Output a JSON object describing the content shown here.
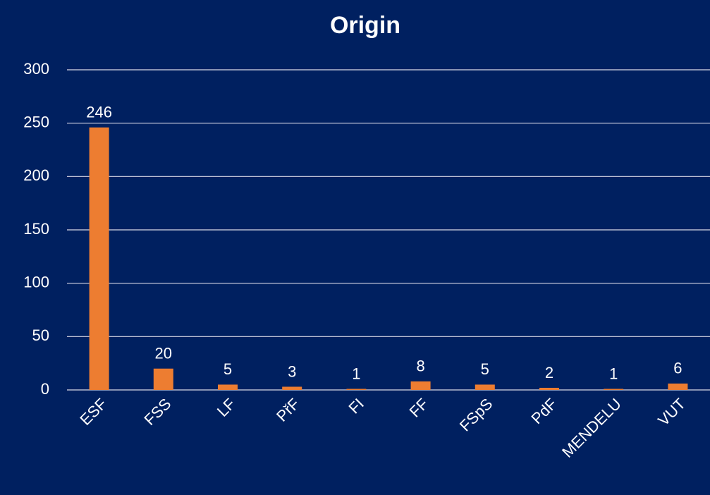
{
  "chart_data": {
    "type": "bar",
    "title": "Origin",
    "categories": [
      "ESF",
      "FSS",
      "LF",
      "PřF",
      "FI",
      "FF",
      "FSpS",
      "PdF",
      "MENDELU",
      "VUT"
    ],
    "values": [
      246,
      20,
      5,
      3,
      1,
      8,
      5,
      2,
      1,
      6
    ],
    "color": "#ED7D31",
    "ylim": [
      0,
      300
    ],
    "yticks": [
      0,
      50,
      100,
      150,
      200,
      250,
      300
    ],
    "grid": true
  }
}
